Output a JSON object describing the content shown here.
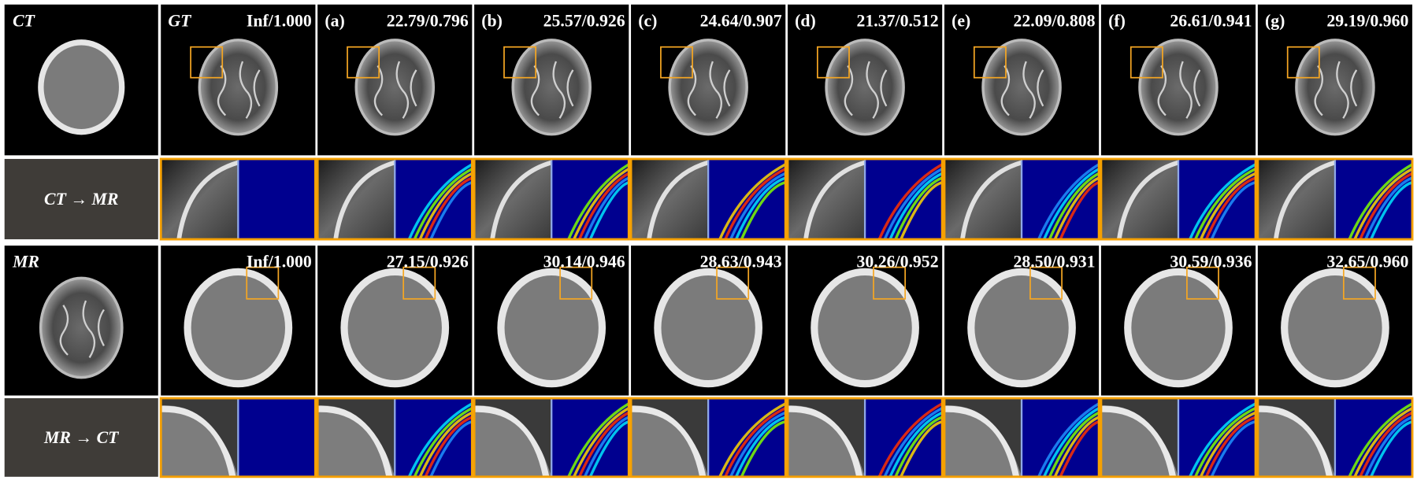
{
  "gt_label": "GT",
  "method_labels": [
    "(a)",
    "(b)",
    "(c)",
    "(d)",
    "(e)",
    "(f)",
    "(g)"
  ],
  "panels": [
    {
      "modality": "CT",
      "task": "CT → MR",
      "gt_score": "Inf/1.000",
      "scores": [
        "22.79/0.796",
        "25.57/0.926",
        "24.64/0.907",
        "21.37/0.512",
        "22.09/0.808",
        "26.61/0.941",
        "29.19/0.960"
      ]
    },
    {
      "modality": "MR",
      "task": "MR → CT",
      "gt_score": "Inf/1.000",
      "scores": [
        "27.15/0.926",
        "30.14/0.946",
        "28.63/0.943",
        "30.26/0.952",
        "28.50/0.931",
        "30.59/0.936",
        "32.65/0.960"
      ]
    }
  ]
}
